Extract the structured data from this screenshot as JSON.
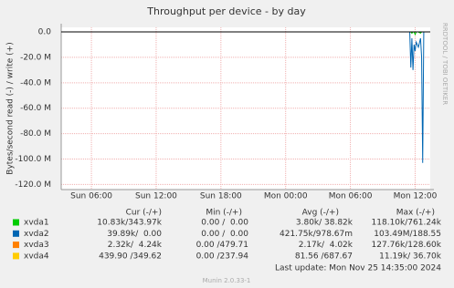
{
  "chart_data": {
    "type": "line",
    "title": "Throughput per device - by day",
    "y_label": "Bytes/second read (-) / write (+)",
    "watermark": "RRDTOOL / TOBI OETIKER",
    "x": [
      3.2,
      35.5,
      35.6,
      35.7,
      35.8,
      35.9,
      36.0,
      36.1,
      36.3,
      36.5,
      36.6,
      36.7,
      36.8,
      37.4
    ],
    "xlim": [
      3.2,
      37.4
    ],
    "xticks": [
      {
        "value": 6,
        "label": "Sun 06:00"
      },
      {
        "value": 12,
        "label": "Sun 12:00"
      },
      {
        "value": 18,
        "label": "Sun 18:00"
      },
      {
        "value": 24,
        "label": "Mon 00:00"
      },
      {
        "value": 30,
        "label": "Mon 06:00"
      },
      {
        "value": 36,
        "label": "Mon 12:00"
      }
    ],
    "ylim": [
      -124000000,
      3600000
    ],
    "yticks": [
      {
        "value": 0,
        "label": "0.0"
      },
      {
        "value": -20000000,
        "label": "-20.0 M"
      },
      {
        "value": -40000000,
        "label": "-40.0 M"
      },
      {
        "value": -60000000,
        "label": "-60.0 M"
      },
      {
        "value": -80000000,
        "label": "-80.0 M"
      },
      {
        "value": -100000000,
        "label": "-100.0 M"
      },
      {
        "value": -120000000,
        "label": "-120.0 M"
      }
    ],
    "grid": true,
    "legend_headers": [
      "Cur (-/+)",
      "Min (-/+)",
      "Avg (-/+)",
      "Max (-/+)"
    ],
    "series": [
      {
        "name": "xvda1",
        "color": "#00cc00",
        "values": [
          0,
          0,
          0,
          -1000000,
          0,
          0,
          -2000000,
          0,
          0,
          -1000000,
          0,
          0,
          0,
          0
        ],
        "stats": [
          "10.83k/343.97k",
          "0.00 /  0.00",
          "3.80k/ 38.82k",
          "118.10k/761.24k"
        ]
      },
      {
        "name": "xvda2",
        "color": "#0066b3",
        "values": [
          0,
          0,
          -28000000,
          -5000000,
          -30000000,
          -10000000,
          -15000000,
          -8000000,
          -12000000,
          -5000000,
          -20000000,
          -103000000,
          0,
          0
        ],
        "stats": [
          "39.89k/  0.00",
          "0.00 /  0.00",
          "421.75k/978.67m",
          "103.49M/188.55"
        ]
      },
      {
        "name": "xvda3",
        "color": "#ff8000",
        "values": [
          0,
          0,
          0,
          0,
          0,
          0,
          0,
          0,
          0,
          0,
          0,
          0,
          0,
          0
        ],
        "stats": [
          "2.32k/  4.24k",
          "0.00 /479.71",
          "2.17k/  4.02k",
          "127.76k/128.60k"
        ]
      },
      {
        "name": "xvda4",
        "color": "#ffcc00",
        "values": [
          0,
          0,
          0,
          0,
          0,
          0,
          0,
          0,
          0,
          0,
          0,
          0,
          0,
          0
        ],
        "stats": [
          "439.90 /349.62",
          "0.00 /237.94",
          "81.56 /687.67",
          "11.19k/ 36.70k"
        ]
      }
    ],
    "last_update": "Last update:  Mon Nov 25 14:35:00 2024",
    "footer": "Munin 2.0.33-1"
  }
}
